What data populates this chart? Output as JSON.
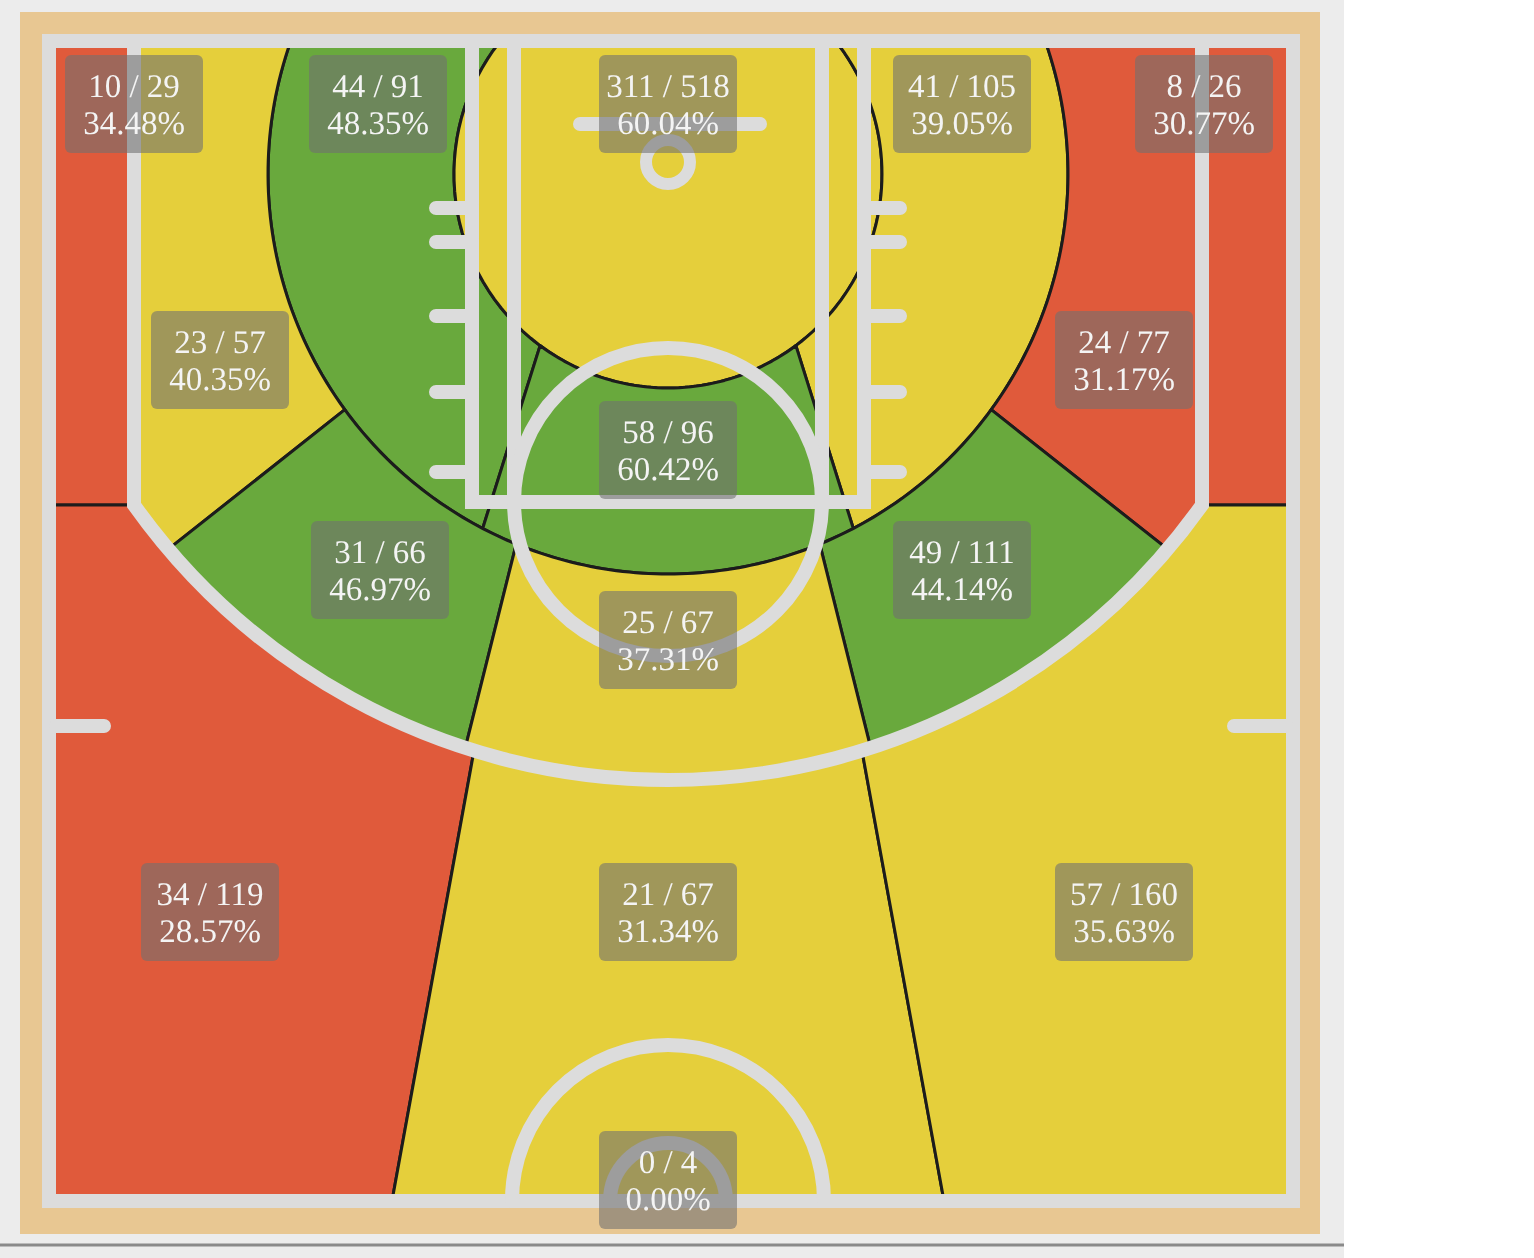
{
  "chart_data": {
    "type": "other",
    "categories": [
      null,
      null,
      null,
      null,
      null,
      null,
      null,
      null,
      null,
      null,
      null,
      null,
      null,
      null,
      null
    ],
    "values": [
      34.48,
      48.35,
      60.04,
      39.05,
      30.77,
      40.35,
      31.17,
      60.42,
      46.97,
      44.14,
      37.31,
      28.57,
      31.34,
      35.63,
      0.0
    ],
    "value_labels": [
      "10 / 29\n34.48%",
      "44 / 91\n48.35%",
      "311 / 518\n60.04%",
      "41 / 105\n39.05%",
      "8 / 26\n30.77%",
      "23 / 57\n40.35%",
      "24 / 77\n31.17%",
      "58 / 96\n60.42%",
      "31 / 66\n46.97%",
      "49 / 111\n44.14%",
      "25 / 67\n37.31%",
      "34 / 119\n28.57%",
      "21 / 67\n31.34%",
      "57 / 160\n35.63%",
      "0 / 4\n0.00%"
    ],
    "colors": [
      "#e05a3b",
      "#69a93d",
      "#e5cf3b",
      "#e5cf3b",
      "#e05a3b",
      "#e5cf3b",
      "#e05a3b",
      "#69a93d",
      "#69a93d",
      "#69a93d",
      "#e5cf3b",
      "#e05a3b",
      "#e5cf3b",
      "#e5cf3b",
      null
    ]
  }
}
